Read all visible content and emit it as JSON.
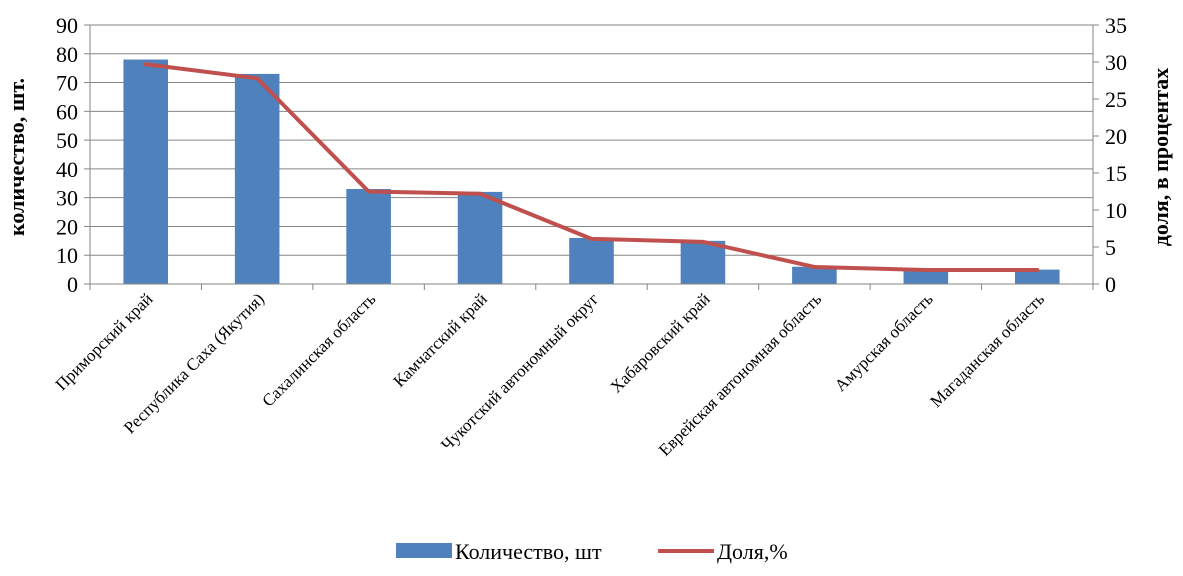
{
  "chart_data": {
    "type": "bar",
    "title": "",
    "categories": [
      "Приморский край",
      "Республика Саха (Якутия)",
      "Сахалинская область",
      "Камчатский край",
      "Чукотский автономный округ",
      "Хабаровский край",
      "Еврейская автономная область",
      "Амурская  область",
      "Магаданская область"
    ],
    "series": [
      {
        "name": "Количество, шт",
        "type": "bar",
        "axis": "left",
        "color": "#4F81BD",
        "values": [
          78,
          73,
          33,
          32,
          16,
          15,
          6,
          5,
          5
        ]
      },
      {
        "name": "Доля,%",
        "type": "line",
        "axis": "right",
        "color": "#C0504D",
        "values": [
          29.7,
          27.8,
          12.5,
          12.2,
          6.1,
          5.7,
          2.3,
          1.9,
          1.9
        ]
      }
    ],
    "ylabel": "количество, шт.",
    "y2label": "доля, в процентах",
    "ylim": [
      0,
      90
    ],
    "y_ticks": [
      0,
      10,
      20,
      30,
      40,
      50,
      60,
      70,
      80,
      90
    ],
    "y2lim": [
      0,
      35
    ],
    "y2_ticks": [
      0,
      5,
      10,
      15,
      20,
      25,
      30,
      35
    ],
    "grid": true,
    "legend_position": "bottom"
  }
}
